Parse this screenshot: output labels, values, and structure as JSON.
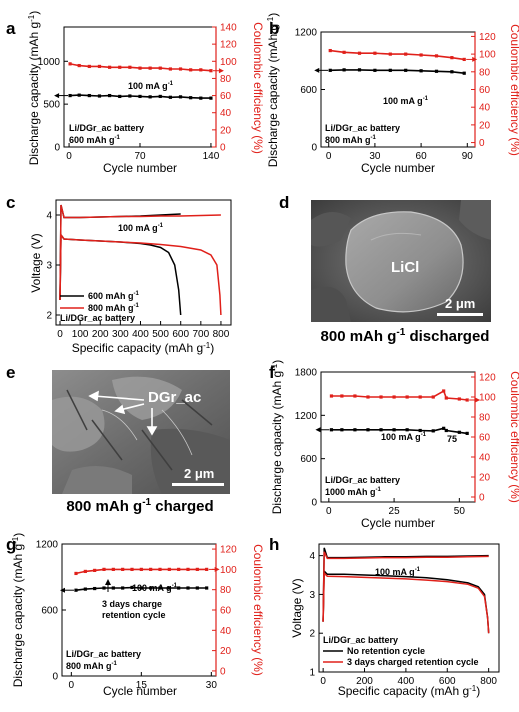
{
  "colors": {
    "capacity": "#000000",
    "efficiency": "#e0201a"
  },
  "chart_data": [
    {
      "panel": "a",
      "type": "scatter",
      "xlabel": "Cycle number",
      "ylabel": "Discharge capacity (mAh g-1)",
      "y2label": "Coulombic efficiency (%)",
      "xlim": [
        -5,
        145
      ],
      "ylim": [
        0,
        1400
      ],
      "y2lim": [
        0,
        140
      ],
      "xticks": [
        0,
        70,
        140
      ],
      "yticks": [
        0,
        500,
        1000
      ],
      "y2ticks": [
        0,
        20,
        40,
        60,
        80,
        100,
        120,
        140
      ],
      "annotations": [
        "100 mA g-1",
        "Li/DGr_ac battery",
        "600 mAh g-1"
      ],
      "series": [
        {
          "axis": "left",
          "x": [
            1,
            10,
            20,
            30,
            40,
            50,
            60,
            70,
            80,
            90,
            100,
            110,
            120,
            130,
            140
          ],
          "values": [
            600,
            605,
            600,
            595,
            600,
            590,
            595,
            590,
            585,
            590,
            580,
            585,
            575,
            570,
            570
          ]
        },
        {
          "axis": "right",
          "x": [
            1,
            10,
            20,
            30,
            40,
            50,
            60,
            70,
            80,
            90,
            100,
            110,
            120,
            130,
            140
          ],
          "values": [
            97,
            95,
            94,
            94,
            93,
            93,
            93,
            92,
            92,
            92,
            91,
            91,
            90,
            90,
            89
          ]
        }
      ]
    },
    {
      "panel": "b",
      "type": "scatter",
      "xlabel": "Cycle number",
      "ylabel": "Discharge capacity (mAh g-1)",
      "y2label": "Coulombic efficiency (%)",
      "xlim": [
        -5,
        95
      ],
      "ylim": [
        0,
        1200
      ],
      "y2lim": [
        -5,
        125
      ],
      "xticks": [
        0,
        30,
        60,
        90
      ],
      "yticks": [
        0,
        600,
        1200
      ],
      "y2ticks": [
        0,
        20,
        40,
        60,
        80,
        100,
        120
      ],
      "annotations": [
        "100 mA g-1",
        "Li/DGr_ac battery",
        "800 mAh g-1"
      ],
      "series": [
        {
          "axis": "left",
          "x": [
            1,
            10,
            20,
            30,
            40,
            50,
            60,
            70,
            80,
            88
          ],
          "values": [
            800,
            805,
            805,
            800,
            800,
            800,
            795,
            790,
            785,
            770
          ]
        },
        {
          "axis": "right",
          "x": [
            1,
            10,
            20,
            30,
            40,
            50,
            60,
            70,
            80,
            88
          ],
          "values": [
            104,
            102,
            101,
            101,
            100,
            100,
            99,
            98,
            96,
            94
          ]
        }
      ]
    },
    {
      "panel": "c",
      "type": "line",
      "xlabel": "Specific capacity (mAh g-1)",
      "ylabel": "Voltage (V)",
      "xlim": [
        -20,
        850
      ],
      "ylim": [
        1.8,
        4.3
      ],
      "xticks": [
        0,
        100,
        200,
        300,
        400,
        500,
        600,
        700,
        800
      ],
      "yticks": [
        2,
        3,
        4
      ],
      "annotations": [
        "100 mA g-1",
        "Li/DGr_ac battery"
      ],
      "series": [
        {
          "name": "600 mAh g-1",
          "x": [
            0,
            5,
            20,
            100,
            200,
            300,
            400,
            450,
            500,
            540,
            570,
            590,
            600
          ],
          "values": [
            2.3,
            3.6,
            3.52,
            3.5,
            3.48,
            3.46,
            3.43,
            3.4,
            3.35,
            3.25,
            3.0,
            2.5,
            2.0
          ]
        },
        {
          "name": "600 mAh g-1",
          "x": [
            0,
            5,
            20,
            100,
            200,
            300,
            400,
            500,
            600
          ],
          "values": [
            2.3,
            4.2,
            3.95,
            3.95,
            3.96,
            3.97,
            3.98,
            4.0,
            4.02
          ]
        },
        {
          "name": "800 mAh g-1",
          "x": [
            0,
            5,
            20,
            100,
            200,
            300,
            400,
            500,
            600,
            700,
            750,
            780,
            795,
            800
          ],
          "values": [
            2.3,
            3.6,
            3.52,
            3.5,
            3.48,
            3.46,
            3.44,
            3.41,
            3.37,
            3.3,
            3.2,
            3.0,
            2.4,
            2.0
          ]
        },
        {
          "name": "800 mAh g-1",
          "x": [
            0,
            5,
            20,
            100,
            200,
            300,
            400,
            500,
            600,
            700,
            800
          ],
          "values": [
            2.3,
            4.2,
            3.95,
            3.95,
            3.96,
            3.97,
            3.97,
            3.98,
            3.98,
            3.99,
            4.0
          ]
        }
      ]
    },
    {
      "panel": "f",
      "type": "scatter",
      "xlabel": "Cycle number",
      "ylabel": "Discharge capacity (mAh g-1)",
      "y2label": "Coulombic efficiency (%)",
      "xlim": [
        -3,
        56
      ],
      "ylim": [
        0,
        1800
      ],
      "y2lim": [
        -5,
        125
      ],
      "xticks": [
        0,
        25,
        50
      ],
      "yticks": [
        0,
        600,
        1200,
        1800
      ],
      "y2ticks": [
        0,
        20,
        40,
        60,
        80,
        100,
        120
      ],
      "annotations": [
        "100 mA g-1",
        "75",
        "Li/DGr_ac battery",
        "1000 mAh g-1"
      ],
      "series": [
        {
          "axis": "left",
          "x": [
            1,
            5,
            10,
            15,
            20,
            25,
            30,
            35,
            40,
            44,
            45,
            50,
            53
          ],
          "values": [
            1000,
            1000,
            1000,
            1000,
            1000,
            1000,
            1000,
            990,
            985,
            1020,
            990,
            965,
            950
          ]
        },
        {
          "axis": "right",
          "x": [
            1,
            5,
            10,
            15,
            20,
            25,
            30,
            35,
            40,
            44,
            45,
            50,
            53
          ],
          "values": [
            101,
            101,
            101,
            100,
            100,
            100,
            100,
            100,
            100,
            106,
            99,
            98,
            97
          ]
        }
      ]
    },
    {
      "panel": "g",
      "type": "scatter",
      "xlabel": "Cycle number",
      "ylabel": "Discharge capacity (mAh g-1)",
      "y2label": "Coulombic efficiency (%)",
      "xlim": [
        -2,
        31
      ],
      "ylim": [
        0,
        1200
      ],
      "y2lim": [
        -5,
        125
      ],
      "xticks": [
        0,
        15,
        30
      ],
      "yticks": [
        0,
        600,
        1200
      ],
      "y2ticks": [
        0,
        20,
        40,
        60,
        80,
        100,
        120
      ],
      "annotations": [
        "100 mA g-1",
        "3 days charge",
        "retention cycle",
        "Li/DGr_ac battery",
        "800 mAh g-1"
      ],
      "series": [
        {
          "axis": "left",
          "x": [
            1,
            3,
            5,
            7,
            9,
            11,
            13,
            15,
            17,
            19,
            21,
            23,
            25,
            27,
            29
          ],
          "values": [
            780,
            790,
            795,
            800,
            800,
            800,
            805,
            800,
            800,
            800,
            800,
            800,
            800,
            800,
            800
          ]
        },
        {
          "axis": "right",
          "x": [
            1,
            3,
            5,
            7,
            9,
            11,
            13,
            15,
            17,
            19,
            21,
            23,
            25,
            27,
            29
          ],
          "values": [
            96,
            98,
            99,
            100,
            100,
            100,
            100,
            100,
            100,
            100,
            100,
            100,
            100,
            100,
            100
          ]
        }
      ]
    },
    {
      "panel": "h",
      "type": "line",
      "xlabel": "Specific capacity (mAh g-1)",
      "ylabel": "Voltage (V)",
      "xlim": [
        -20,
        850
      ],
      "ylim": [
        1.0,
        4.3
      ],
      "xticks": [
        0,
        200,
        400,
        600,
        800
      ],
      "yticks": [
        1,
        2,
        3,
        4
      ],
      "annotations": [
        "100 mA g-1",
        "Li/DGr_ac battery"
      ],
      "series": [
        {
          "name": "No retention cycle",
          "x": [
            0,
            5,
            20,
            100,
            200,
            300,
            400,
            500,
            600,
            700,
            750,
            780,
            795,
            800
          ],
          "values": [
            2.3,
            3.6,
            3.52,
            3.52,
            3.5,
            3.48,
            3.46,
            3.43,
            3.38,
            3.3,
            3.2,
            3.0,
            2.4,
            2.0
          ]
        },
        {
          "name": "No retention cycle",
          "x": [
            0,
            5,
            20,
            100,
            200,
            300,
            400,
            500,
            600,
            700,
            800
          ],
          "values": [
            2.3,
            4.2,
            3.95,
            3.95,
            3.96,
            3.97,
            3.97,
            3.98,
            3.98,
            3.99,
            4.0
          ]
        },
        {
          "name": "3 days charged retention cycle",
          "x": [
            0,
            5,
            20,
            100,
            200,
            300,
            400,
            500,
            600,
            700,
            750,
            780,
            795,
            800
          ],
          "values": [
            2.3,
            3.55,
            3.47,
            3.46,
            3.44,
            3.42,
            3.4,
            3.37,
            3.33,
            3.26,
            3.16,
            2.95,
            2.4,
            2.0
          ]
        },
        {
          "name": "3 days charged retention cycle",
          "x": [
            0,
            5,
            20,
            100,
            200,
            300,
            400,
            500,
            600,
            700,
            800
          ],
          "values": [
            2.3,
            4.1,
            3.93,
            3.93,
            3.94,
            3.95,
            3.95,
            3.96,
            3.96,
            3.97,
            3.98
          ]
        }
      ]
    }
  ],
  "images": {
    "d": {
      "label": "LiCl",
      "scale": "2 μm",
      "caption_main": "800 mAh g",
      "caption_sup": "-1",
      "caption_tail": " discharged"
    },
    "e": {
      "label": "DGr_ac",
      "scale": "2 μm",
      "caption_main": "800 mAh g",
      "caption_sup": "-1",
      "caption_tail": " charged"
    }
  }
}
